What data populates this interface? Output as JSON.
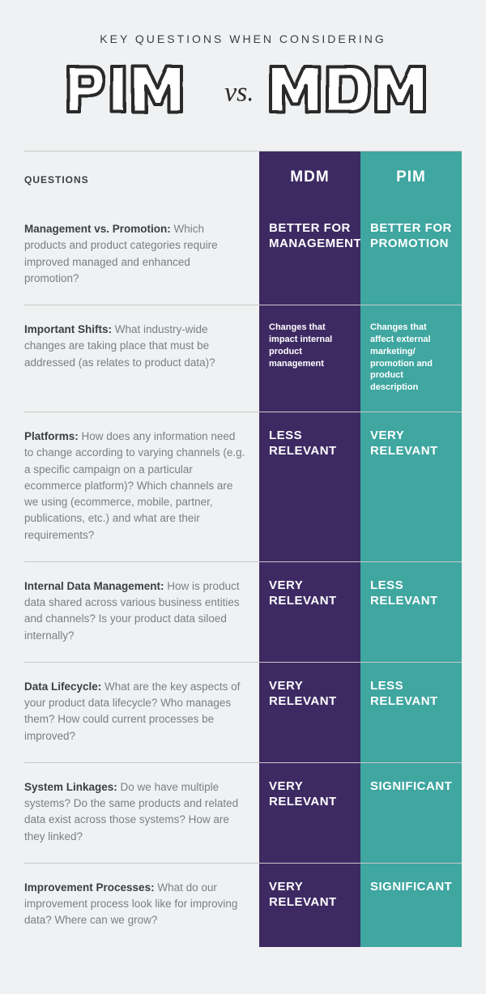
{
  "colors": {
    "background": "#f0f1f2",
    "text_primary": "#3a3f44",
    "text_secondary": "#7a7f83",
    "mdm_bg": "#3e2a63",
    "pim_bg": "#3fa6a0",
    "divider": "#c8c8c8",
    "col_text": "#ffffff"
  },
  "pretitle": "KEY QUESTIONS WHEN CONSIDERING",
  "hero": {
    "left": "PIM",
    "middle": "vs.",
    "right": "MDM"
  },
  "columns": {
    "questions_header": "QUESTIONS",
    "mdm_header": "MDM",
    "pim_header": "PIM"
  },
  "rows": [
    {
      "lead": "Management vs. Promotion:",
      "body": "Which products and product categories require improved managed and enhanced promotion?",
      "mdm": {
        "style": "big",
        "text": "BETTER FOR MANAGEMENT"
      },
      "pim": {
        "style": "big",
        "text": "BETTER FOR PROMOTION"
      }
    },
    {
      "lead": "Important Shifts:",
      "body": "What industry-wide changes are taking place that must be addressed (as relates to product data)?",
      "mdm": {
        "style": "small",
        "text": "Changes that impact internal product management"
      },
      "pim": {
        "style": "small",
        "text": "Changes that affect external marketing/ promotion and product description"
      }
    },
    {
      "lead": "Platforms:",
      "body": "How does any information need to change according to varying channels (e.g. a specific campaign on a particular ecommerce platform)? Which channels are we using (ecommerce, mobile, partner, publications, etc.) and what are their requirements?",
      "mdm": {
        "style": "big",
        "text": "LESS RELEVANT"
      },
      "pim": {
        "style": "big",
        "text": "VERY RELEVANT"
      }
    },
    {
      "lead": "Internal Data Management:",
      "body": "How is product data shared across various business entities and channels? Is your product data siloed internally?",
      "mdm": {
        "style": "big",
        "text": "VERY RELEVANT"
      },
      "pim": {
        "style": "big",
        "text": "LESS RELEVANT"
      }
    },
    {
      "lead": "Data Lifecycle:",
      "body": "What are the key aspects of your product data lifecycle? Who manages them? How could current processes be improved?",
      "mdm": {
        "style": "big",
        "text": "VERY RELEVANT"
      },
      "pim": {
        "style": "big",
        "text": "LESS RELEVANT"
      }
    },
    {
      "lead": "System Linkages:",
      "body": "Do we have multiple systems? Do the same products and related data exist across those systems? How are they linked?",
      "mdm": {
        "style": "big",
        "text": "VERY RELEVANT"
      },
      "pim": {
        "style": "big",
        "text": "SIGNIFICANT"
      }
    },
    {
      "lead": "Improvement Processes:",
      "body": "What do our improvement process look like for improving data? Where can we grow?",
      "mdm": {
        "style": "big",
        "text": "VERY RELEVANT"
      },
      "pim": {
        "style": "big",
        "text": "SIGNIFICANT"
      }
    }
  ]
}
